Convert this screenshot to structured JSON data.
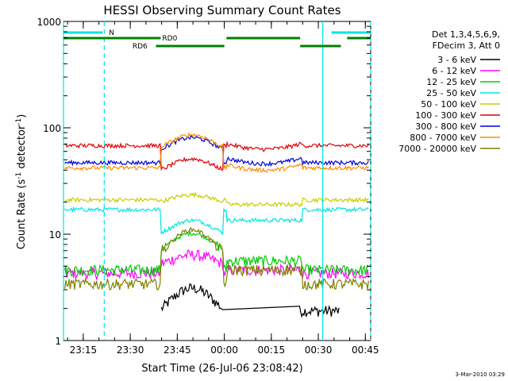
{
  "chart_data": {
    "type": "line",
    "title": "HESSI Observing Summary Count Rates",
    "xlabel": "Start Time (26-Jul-06 23:08:42)",
    "ylabel_main": "Count Rate (s",
    "ylabel_sup1": "-1",
    "ylabel_mid": " detector",
    "ylabel_sup2": "-1",
    "ylabel_end": ")",
    "yscale": "log",
    "ylim": [
      1,
      1000
    ],
    "xlim_minutes": [
      0,
      98
    ],
    "grid": false,
    "legend_position": "right",
    "x_ticks": [
      {
        "m": 6.3,
        "label": "23:15"
      },
      {
        "m": 21.3,
        "label": "23:30"
      },
      {
        "m": 36.3,
        "label": "23:45"
      },
      {
        "m": 51.3,
        "label": "00:00"
      },
      {
        "m": 66.3,
        "label": "00:15"
      },
      {
        "m": 81.3,
        "label": "00:30"
      },
      {
        "m": 96.3,
        "label": "00:45"
      }
    ],
    "y_ticks": [
      {
        "v": 1,
        "label": "1"
      },
      {
        "v": 10,
        "label": "10"
      },
      {
        "v": 100,
        "label": "100"
      },
      {
        "v": 1000,
        "label": "1000"
      }
    ],
    "legend_header": [
      "Det 1,3,4,5,6,9,",
      "FDecim 3, Att 0"
    ],
    "series": [
      {
        "name": "3 - 6 keV",
        "color": "#000000"
      },
      {
        "name": "6 - 12 keV",
        "color": "#ff00ff"
      },
      {
        "name": "12 - 25 keV",
        "color": "#00cc00"
      },
      {
        "name": "25 - 50 keV",
        "color": "#00e5e5"
      },
      {
        "name": "50 - 100 keV",
        "color": "#cccc00"
      },
      {
        "name": "100 - 300 keV",
        "color": "#e00000"
      },
      {
        "name": "300 - 800 keV",
        "color": "#0000dd"
      },
      {
        "name": "800 - 7000 keV",
        "color": "#ff8c00"
      },
      {
        "name": "7000 - 20000 keV",
        "color": "#808000"
      }
    ],
    "flags": {
      "N_label": "N",
      "RD0_label": "RD0",
      "RD6_label": "RD6",
      "N_segments": [
        [
          0,
          12.5
        ],
        [
          85.5,
          98
        ]
      ],
      "RD0_segments": [
        [
          0,
          31
        ],
        [
          52,
          75.5
        ],
        [
          90.5,
          98
        ]
      ],
      "RD6_segments": [
        [
          29.5,
          51.3
        ],
        [
          75.5,
          88.5
        ]
      ],
      "cyan_solid_lines": [
        0,
        82.7
      ],
      "cyan_dashed_lines": [
        13,
        98
      ]
    }
  },
  "footer_date": "3-Mar-2010 03:29"
}
